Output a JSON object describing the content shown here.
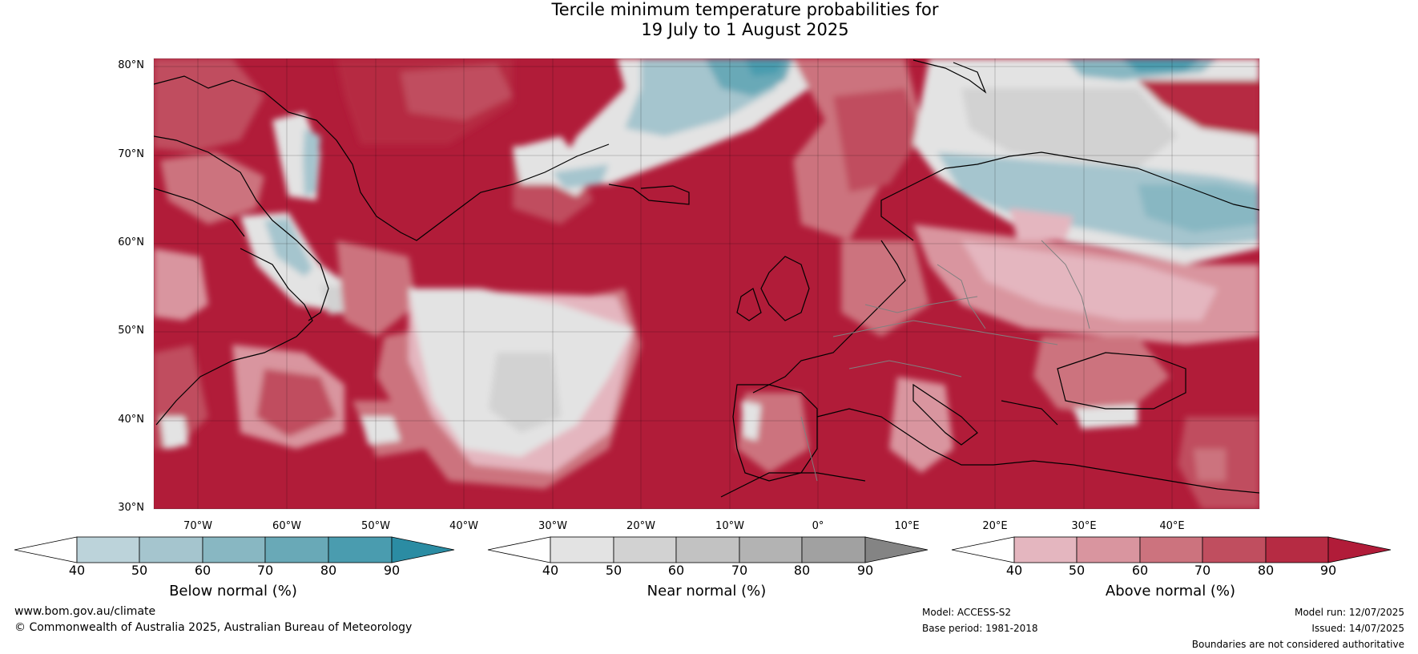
{
  "title": {
    "line1": "Tercile minimum temperature probabilities for",
    "line2": "19 July to 1 August 2025"
  },
  "axes": {
    "lat_labels": [
      "80°N",
      "70°N",
      "60°N",
      "50°N",
      "40°N",
      "30°N"
    ],
    "lon_labels": [
      "70°W",
      "60°W",
      "50°W",
      "40°W",
      "30°W",
      "20°W",
      "10°W",
      "0°",
      "10°E",
      "20°E",
      "30°E",
      "40°E"
    ]
  },
  "colorbars": [
    {
      "label": "Below normal (%)",
      "ticks": [
        "40",
        "50",
        "60",
        "70",
        "80",
        "90"
      ],
      "colors": [
        "#ffffff",
        "#bcd3da",
        "#a5c5ce",
        "#88b7c2",
        "#69a9b7",
        "#4a9caf",
        "#2b8ca3"
      ]
    },
    {
      "label": "Near normal (%)",
      "ticks": [
        "40",
        "50",
        "60",
        "70",
        "80",
        "90"
      ],
      "colors": [
        "#ffffff",
        "#e3e3e3",
        "#d2d2d2",
        "#c2c2c2",
        "#b3b3b3",
        "#a1a1a1",
        "#848484"
      ]
    },
    {
      "label": "Above normal (%)",
      "ticks": [
        "40",
        "50",
        "60",
        "70",
        "80",
        "90"
      ],
      "colors": [
        "#ffffff",
        "#e4b6bf",
        "#d9959f",
        "#cc737e",
        "#c04e5f",
        "#b62b43",
        "#b11c39"
      ]
    }
  ],
  "map_colors": {
    "above_90": "#b11c39",
    "above_80": "#b62b43",
    "above_70": "#c04e5f",
    "above_60": "#cc737e",
    "above_50": "#d9959f",
    "above_40": "#e4b6bf",
    "near_50": "#e3e3e3",
    "near_60": "#d2d2d2",
    "near_70": "#c2c2c2",
    "below_50": "#bcd3da",
    "below_60": "#a5c5ce",
    "below_70": "#88b7c2",
    "below_80": "#69a9b7",
    "below_90": "#4a9caf",
    "coast": "#000000",
    "border": "#808080"
  },
  "footer": {
    "website": "www.bom.gov.au/climate",
    "copyright": "© Commonwealth of Australia 2025, Australian Bureau of Meteorology",
    "model": "Model: ACCESS-S2",
    "base_period": "Base period: 1981-2018",
    "model_run": "Model run: 12/07/2025",
    "issued": "Issued: 14/07/2025",
    "disclaimer": "Boundaries are not considered authoritative"
  }
}
